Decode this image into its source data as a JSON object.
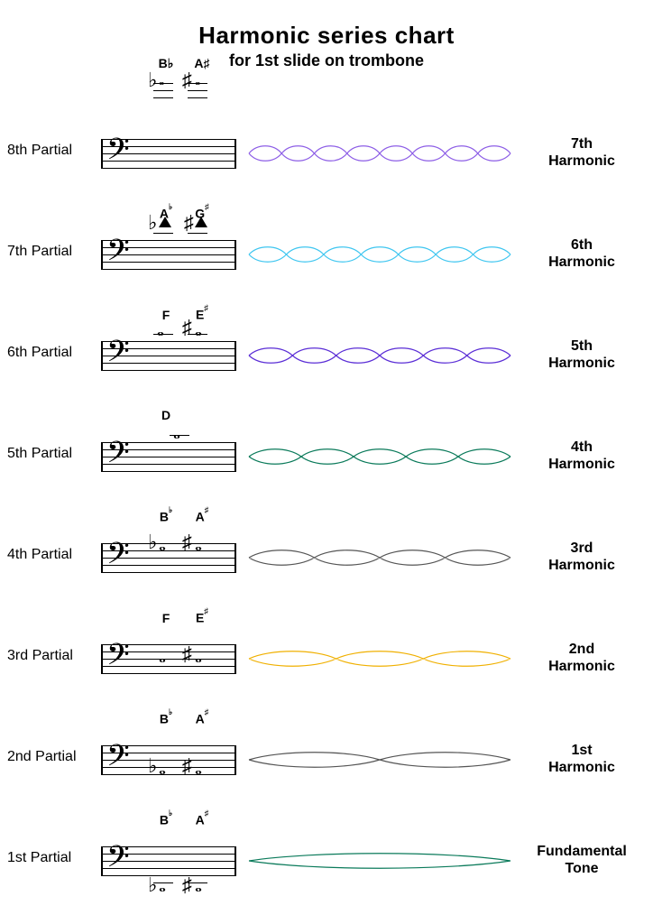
{
  "title": {
    "main": "Harmonic series chart",
    "sub": "for 1st slide on trombone"
  },
  "wave_svg_width": 290,
  "wave_svg_height": 32,
  "wave_amplitude": 11,
  "wave_stroke_width": 1.2,
  "top_notation": {
    "note1_label": "B♭",
    "note2_label": "A♯"
  },
  "rows": [
    {
      "partial_label": "8th Partial",
      "harmonic_label_line1": "7th",
      "harmonic_label_line2": "Harmonic",
      "wave_lobes": 8,
      "wave_color": "#8d5ee6",
      "note1_label": "",
      "note2_label": "",
      "note_variant": "none"
    },
    {
      "partial_label": "7th Partial",
      "harmonic_label_line1": "6th",
      "harmonic_label_line2": "Harmonic",
      "wave_lobes": 7,
      "wave_color": "#3fc6f0",
      "note1_label": "A♭",
      "note2_label": "G♯",
      "note_variant": "tri_ledger_above"
    },
    {
      "partial_label": "6th Partial",
      "harmonic_label_line1": "5th",
      "harmonic_label_line2": "Harmonic",
      "wave_lobes": 6,
      "wave_color": "#5b2ed6",
      "note1_label": "F",
      "note2_label": "E♯",
      "note_variant": "whole_ledger_above"
    },
    {
      "partial_label": "5th Partial",
      "harmonic_label_line1": "4th",
      "harmonic_label_line2": "Harmonic",
      "wave_lobes": 5,
      "wave_color": "#0a7a5a",
      "note1_label": "D",
      "note2_label": "",
      "note_variant": "single_above"
    },
    {
      "partial_label": "4th Partial",
      "harmonic_label_line1": "3rd",
      "harmonic_label_line2": "Harmonic",
      "wave_lobes": 4,
      "wave_color": "#555555",
      "note1_label": "B♭",
      "note2_label": "A♯",
      "note_variant": "whole_top_line"
    },
    {
      "partial_label": "3rd Partial",
      "harmonic_label_line1": "2nd",
      "harmonic_label_line2": "Harmonic",
      "wave_lobes": 3,
      "wave_color": "#f0b000",
      "note1_label": "F",
      "note2_label": "E♯",
      "note_variant": "whole_mid"
    },
    {
      "partial_label": "2nd Partial",
      "harmonic_label_line1": "1st",
      "harmonic_label_line2": "Harmonic",
      "wave_lobes": 2,
      "wave_color": "#555555",
      "note1_label": "B♭",
      "note2_label": "A♯",
      "note_variant": "whole_below_mid"
    },
    {
      "partial_label": "1st Partial",
      "harmonic_label_line1": "Fundamental",
      "harmonic_label_line2": "Tone",
      "wave_lobes": 1,
      "wave_color": "#0a7a5a",
      "note1_label": "B♭",
      "note2_label": "A♯",
      "note_variant": "whole_ledger_below"
    }
  ]
}
